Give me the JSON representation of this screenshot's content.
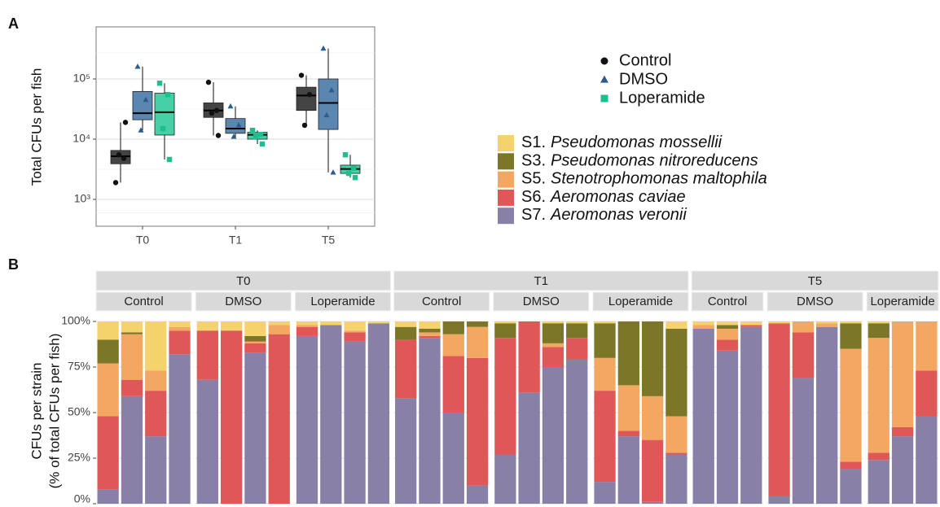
{
  "chart_data": [
    {
      "type": "box",
      "panel": "A",
      "log_y": true,
      "ylabel": "Total CFUs per fish",
      "categories": [
        "T0",
        "T1",
        "T5"
      ],
      "ylim": [
        358,
        733000
      ],
      "yticks": [
        {
          "value": 1000,
          "label": "10³"
        },
        {
          "value": 10000,
          "label": "10⁴"
        },
        {
          "value": 100000,
          "label": "10⁵"
        }
      ],
      "grid": true,
      "series": [
        {
          "name": "Control",
          "color": "#111111",
          "fill": "#444444",
          "marker": "circle",
          "boxes": [
            {
              "min": 1900,
              "q1": 3900,
              "median": 5200,
              "q3": 6500,
              "max": 19000,
              "points": [
                1900,
                4800,
                5500,
                19000
              ]
            },
            {
              "min": 11500,
              "q1": 23000,
              "median": 30000,
              "q3": 40000,
              "max": 88000,
              "points": [
                88000,
                30000,
                27000,
                11500
              ]
            },
            {
              "min": 17000,
              "q1": 30000,
              "median": 53000,
              "q3": 73000,
              "max": 115000,
              "points": [
                115000,
                55000,
                17000
              ]
            }
          ]
        },
        {
          "name": "DMSO",
          "color": "#2b5d8c",
          "fill": "#5b86b0",
          "marker": "triangle",
          "boxes": [
            {
              "min": 14000,
              "q1": 21000,
              "median": 27000,
              "q3": 62000,
              "max": 160000,
              "points": [
                160000,
                45000,
                14000
              ]
            },
            {
              "min": 10500,
              "q1": 12500,
              "median": 15000,
              "q3": 22000,
              "max": 35000,
              "points": [
                35000,
                17000,
                11000
              ]
            },
            {
              "min": 2800,
              "q1": 14500,
              "median": 40000,
              "q3": 100000,
              "max": 320000,
              "points": [
                320000,
                65000,
                25000,
                2800
              ]
            }
          ]
        },
        {
          "name": "Loperamide",
          "color": "#1dbf8f",
          "fill": "#45d0a6",
          "marker": "square",
          "boxes": [
            {
              "min": 4600,
              "q1": 11700,
              "median": 28000,
              "q3": 58000,
              "max": 85000,
              "points": [
                85000,
                55000,
                15000,
                4600
              ]
            },
            {
              "min": 8300,
              "q1": 10000,
              "median": 11800,
              "q3": 13000,
              "max": 14000,
              "points": [
                14000,
                12000,
                11000,
                8300
              ]
            },
            {
              "min": 2300,
              "q1": 2700,
              "median": 3200,
              "q3": 3700,
              "max": 5500,
              "points": [
                5500,
                3300,
                2700,
                2300
              ]
            }
          ]
        }
      ]
    },
    {
      "type": "stacked_bar",
      "panel": "B",
      "ylabel": [
        "CFUs per strain",
        "(% of total CFUs per fish)"
      ],
      "ylim": [
        0,
        100
      ],
      "yticks": [
        {
          "value": 0,
          "label": "0%"
        },
        {
          "value": 25,
          "label": "25%"
        },
        {
          "value": 50,
          "label": "50%"
        },
        {
          "value": 75,
          "label": "75%"
        },
        {
          "value": 100,
          "label": "100%"
        }
      ],
      "grid": true,
      "series": [
        {
          "name": "S1.",
          "species": "Pseudomonas mossellii",
          "color": "#f5d36c"
        },
        {
          "name": "S3.",
          "species": "Pseudomonas nitroreducens",
          "color": "#7b7628"
        },
        {
          "name": "S5.",
          "species": "Stenotrophomonas maltophila",
          "color": "#f3a760"
        },
        {
          "name": "S6.",
          "species": "Aeromonas caviae",
          "color": "#e05758"
        },
        {
          "name": "S7.",
          "species": "Aeromonas veronii",
          "color": "#8980a8"
        }
      ],
      "facets": [
        {
          "label": "T0",
          "groups": [
            {
              "label": "Control",
              "bars": [
                [
                  10,
                  13,
                  29,
                  40,
                  8
                ],
                [
                  6,
                  1,
                  25,
                  9,
                  59
                ],
                [
                  27,
                  0,
                  11,
                  25,
                  37
                ],
                [
                  3,
                  0,
                  2,
                  13,
                  82
                ]
              ]
            },
            {
              "label": "DMSO",
              "bars": [
                [
                  5,
                  0,
                  0,
                  27,
                  68
                ],
                [
                  5,
                  0,
                  0,
                  95,
                  0
                ],
                [
                  8,
                  3,
                  1,
                  5,
                  83
                ],
                [
                  2,
                  0,
                  5,
                  93,
                  0
                ]
              ]
            },
            {
              "label": "Loperamide",
              "bars": [
                [
                  2,
                  0,
                  1,
                  5,
                  92
                ],
                [
                  2,
                  0,
                  0,
                  0,
                  98
                ],
                [
                  5,
                  0,
                  1,
                  5,
                  89
                ],
                [
                  1,
                  0,
                  0,
                  0,
                  99
                ]
              ]
            }
          ]
        },
        {
          "label": "T1",
          "groups": [
            {
              "label": "Control",
              "bars": [
                [
                  3,
                  7,
                  0,
                  32,
                  58
                ],
                [
                  4,
                  2,
                  2,
                  1,
                  91
                ],
                [
                  0,
                  7,
                  12,
                  31,
                  50
                ],
                [
                  0,
                  3,
                  17,
                  70,
                  10
                ]
              ]
            },
            {
              "label": "DMSO",
              "bars": [
                [
                  1,
                  8,
                  0,
                  64,
                  27
                ],
                [
                  0,
                  0,
                  0,
                  39,
                  61
                ],
                [
                  1,
                  11,
                  2,
                  11,
                  75
                ],
                [
                  1,
                  8,
                  0,
                  12,
                  79
                ]
              ]
            },
            {
              "label": "Loperamide",
              "bars": [
                [
                  1,
                  19,
                  18,
                  50,
                  12
                ],
                [
                  0,
                  35,
                  25,
                  3,
                  37
                ],
                [
                  0,
                  41,
                  24,
                  34,
                  1
                ],
                [
                  4,
                  48,
                  20,
                  1,
                  27
                ]
              ]
            }
          ]
        },
        {
          "label": "T5",
          "groups": [
            {
              "label": "Control",
              "bars": [
                [
                  2,
                  0,
                  2,
                  0,
                  96
                ],
                [
                  2,
                  2,
                  6,
                  6,
                  84
                ],
                [
                  2,
                  0,
                  0,
                  1,
                  97
                ]
              ]
            },
            {
              "label": "DMSO",
              "bars": [
                [
                  1,
                  0,
                  0,
                  95,
                  4
                ],
                [
                  0,
                  0,
                  6,
                  25,
                  69
                ],
                [
                  1,
                  0,
                  2,
                  0,
                  97
                ],
                [
                  1,
                  14,
                  62,
                  4,
                  19
                ]
              ]
            },
            {
              "label": "Loperamide",
              "bars": [
                [
                  1,
                  8,
                  63,
                  4,
                  24
                ],
                [
                  0,
                  0,
                  58,
                  5,
                  37
                ],
                [
                  0,
                  0,
                  27,
                  25,
                  48
                ]
              ]
            }
          ]
        }
      ]
    }
  ]
}
